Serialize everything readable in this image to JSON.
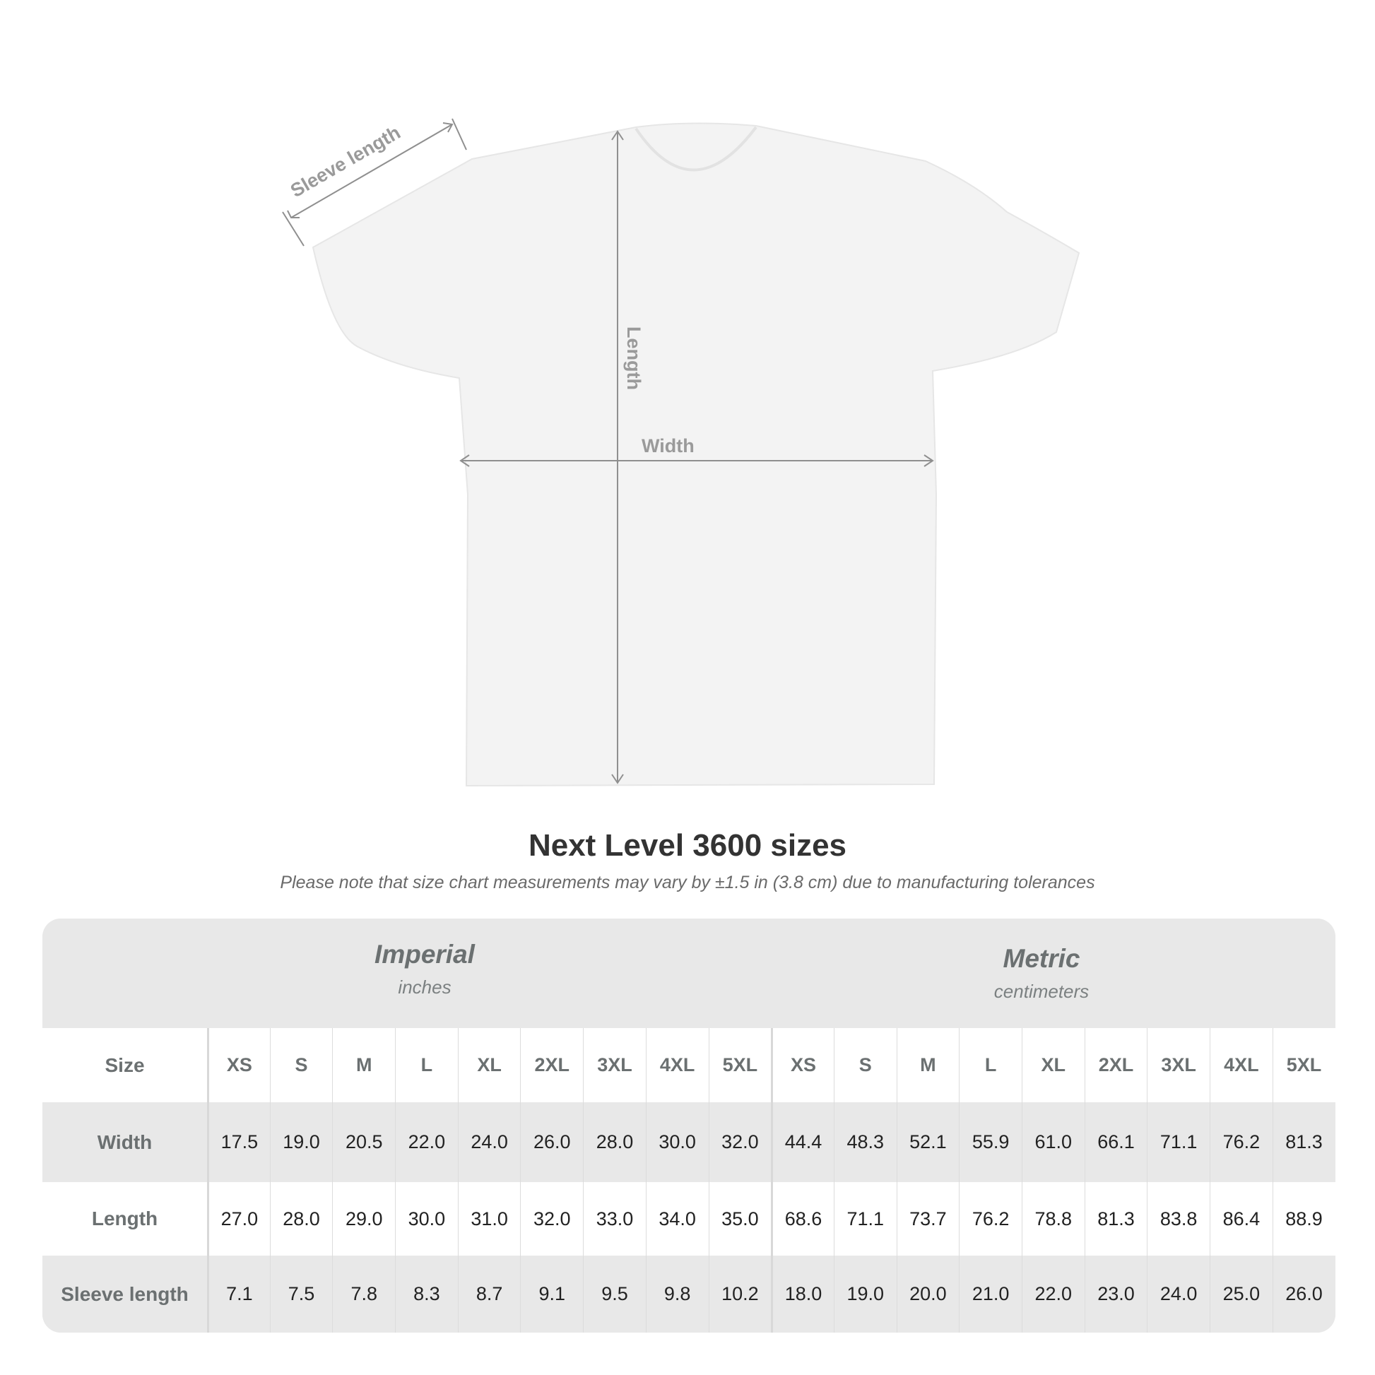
{
  "diagram": {
    "labels": {
      "sleeve": "Sleeve length",
      "length": "Length",
      "width": "Width"
    }
  },
  "title": "Next Level 3600 sizes",
  "note": "Please note that size chart measurements may vary by ±1.5 in (3.8 cm) due to manufacturing tolerances",
  "table": {
    "imperial": {
      "name": "Imperial",
      "unit": "inches"
    },
    "metric": {
      "name": "Metric",
      "unit": "centimeters"
    },
    "size_label": "Size",
    "sizes": [
      "XS",
      "S",
      "M",
      "L",
      "XL",
      "2XL",
      "3XL",
      "4XL",
      "5XL"
    ],
    "rows": [
      {
        "label": "Width",
        "imperial": [
          "17.5",
          "19.0",
          "20.5",
          "22.0",
          "24.0",
          "26.0",
          "28.0",
          "30.0",
          "32.0"
        ],
        "metric": [
          "44.4",
          "48.3",
          "52.1",
          "55.9",
          "61.0",
          "66.1",
          "71.1",
          "76.2",
          "81.3"
        ]
      },
      {
        "label": "Length",
        "imperial": [
          "27.0",
          "28.0",
          "29.0",
          "30.0",
          "31.0",
          "32.0",
          "33.0",
          "34.0",
          "35.0"
        ],
        "metric": [
          "68.6",
          "71.1",
          "73.7",
          "76.2",
          "78.8",
          "81.3",
          "83.8",
          "86.4",
          "88.9"
        ]
      },
      {
        "label": "Sleeve length",
        "imperial": [
          "7.1",
          "7.5",
          "7.8",
          "8.3",
          "8.7",
          "9.1",
          "9.5",
          "9.8",
          "10.2"
        ],
        "metric": [
          "18.0",
          "19.0",
          "20.0",
          "21.0",
          "22.0",
          "23.0",
          "24.0",
          "25.0",
          "26.0"
        ]
      }
    ]
  }
}
